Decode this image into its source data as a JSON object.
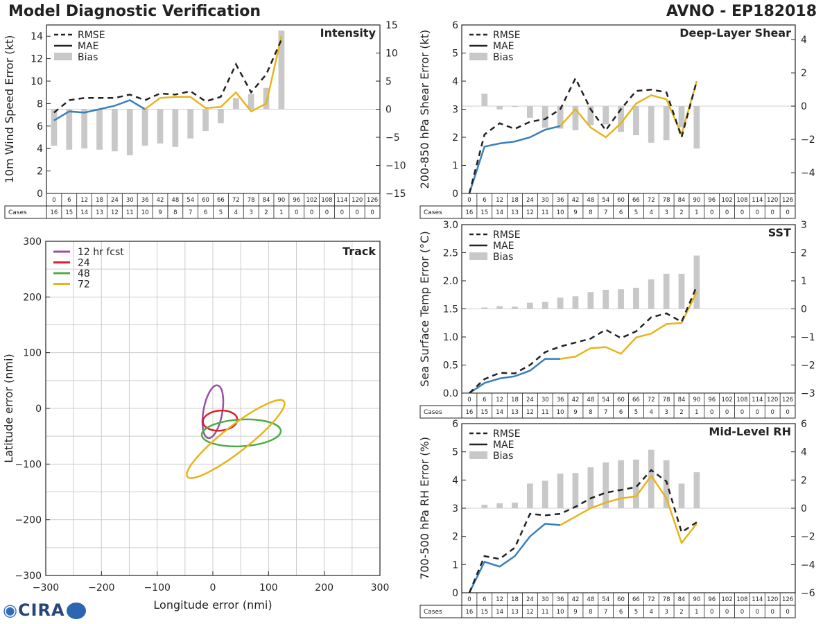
{
  "header": {
    "title_left": "Model Diagnostic Verification",
    "title_right": "AVNO - EP182018"
  },
  "logo": {
    "text": "CIRA"
  },
  "colors": {
    "gray": "#c8c8c8",
    "blue": "#3a7fbb",
    "yellow": "#e8b41a",
    "black": "#222222",
    "purple": "#9a4fa6",
    "red": "#d8202a",
    "green": "#4eac4a"
  },
  "cases_label": "Cases",
  "chart_data": [
    {
      "id": "intensity",
      "type": "line",
      "title": "Intensity",
      "ylabel": "10m Wind Speed Error (kt)",
      "ylim": [
        0,
        15
      ],
      "yticks": [
        "0",
        "2",
        "4",
        "6",
        "8",
        "10",
        "12",
        "14"
      ],
      "ytick_values": [
        0,
        2,
        4,
        6,
        8,
        10,
        12,
        14
      ],
      "y2lim": [
        -15,
        15
      ],
      "y2ticks": [
        "−15",
        "−10",
        "−5",
        "0",
        "5",
        "10",
        "15"
      ],
      "y2tick_values": [
        -15,
        -10,
        -5,
        0,
        5,
        10,
        15
      ],
      "legend": [
        "RMSE",
        "MAE",
        "Bias"
      ],
      "x": [
        "0",
        "6",
        "12",
        "18",
        "24",
        "30",
        "36",
        "42",
        "48",
        "54",
        "60",
        "66",
        "72",
        "78",
        "84",
        "90",
        "96",
        "102",
        "108",
        "114",
        "120",
        "126"
      ],
      "cases": [
        "16",
        "15",
        "14",
        "13",
        "12",
        "11",
        "10",
        "9",
        "8",
        "7",
        "6",
        "5",
        "4",
        "3",
        "2",
        "1",
        "0",
        "0",
        "0",
        "0",
        "0",
        "0"
      ],
      "rmse": [
        7.2,
        8.3,
        8.5,
        8.5,
        8.5,
        8.8,
        8.3,
        8.9,
        8.8,
        9.1,
        8.2,
        8.6,
        11.5,
        9.0,
        10.6,
        13.7
      ],
      "mae": [
        6.5,
        7.3,
        7.2,
        7.5,
        7.8,
        8.3,
        7.5,
        8.5,
        8.6,
        8.6,
        7.6,
        7.7,
        9.0,
        7.3,
        8.0,
        14.0
      ],
      "bias": [
        -6.5,
        -7.2,
        -7.0,
        -7.2,
        -7.5,
        -8.2,
        -6.5,
        -6.1,
        -6.7,
        -5.2,
        -3.9,
        -2.5,
        2.0,
        2.7,
        3.8,
        14.0
      ]
    },
    {
      "id": "shear",
      "type": "line",
      "title": "Deep-Layer Shear",
      "ylabel": "200-850 hPa Shear Error (kt)",
      "ylim": [
        0,
        6
      ],
      "yticks": [
        "0",
        "1",
        "2",
        "3",
        "4",
        "5",
        "6"
      ],
      "ytick_values": [
        0,
        1,
        2,
        3,
        4,
        5,
        6
      ],
      "y2lim": [
        -5.25,
        4.88
      ],
      "y2ticks": [
        "−4",
        "−2",
        "0",
        "2",
        "4"
      ],
      "y2tick_values": [
        -4,
        -2,
        0,
        2,
        4
      ],
      "legend": [
        "RMSE",
        "MAE",
        "Bias"
      ],
      "x": [
        "0",
        "6",
        "12",
        "18",
        "24",
        "30",
        "36",
        "42",
        "48",
        "54",
        "60",
        "66",
        "72",
        "78",
        "84",
        "90",
        "96",
        "102",
        "108",
        "114",
        "120",
        "126"
      ],
      "cases": [
        "16",
        "15",
        "14",
        "13",
        "12",
        "11",
        "10",
        "9",
        "8",
        "7",
        "6",
        "5",
        "4",
        "3",
        "2",
        "1",
        "0",
        "0",
        "0",
        "0",
        "0",
        "0"
      ],
      "rmse": [
        0.0,
        2.1,
        2.5,
        2.3,
        2.55,
        2.65,
        3.0,
        4.1,
        3.0,
        2.25,
        3.0,
        3.65,
        3.7,
        3.6,
        2.0,
        4.0
      ],
      "mae": [
        0.0,
        1.67,
        1.78,
        1.85,
        2.0,
        2.27,
        2.4,
        3.0,
        2.35,
        2.0,
        2.5,
        3.2,
        3.5,
        3.35,
        2.1,
        4.0
      ],
      "bias": [
        0.0,
        0.75,
        -0.2,
        -0.05,
        -0.7,
        -1.3,
        -1.35,
        -1.45,
        -1.15,
        -1.1,
        -1.55,
        -1.75,
        -2.2,
        -2.05,
        -1.27,
        -2.55
      ]
    },
    {
      "id": "sst",
      "type": "line",
      "title": "SST",
      "ylabel": "Sea Surface Temp Error (°C)",
      "ylim": [
        0,
        3.0
      ],
      "yticks": [
        "0.0",
        "0.5",
        "1.0",
        "1.5",
        "2.0",
        "2.5",
        "3.0"
      ],
      "ytick_values": [
        0,
        0.5,
        1.0,
        1.5,
        2.0,
        2.5,
        3.0
      ],
      "y2lim": [
        -3,
        3
      ],
      "y2ticks": [
        "−3",
        "−2",
        "−1",
        "0",
        "1",
        "2",
        "3"
      ],
      "y2tick_values": [
        -3,
        -2,
        -1,
        0,
        1,
        2,
        3
      ],
      "legend": [
        "RMSE",
        "MAE",
        "Bias"
      ],
      "x": [
        "0",
        "6",
        "12",
        "18",
        "24",
        "30",
        "36",
        "42",
        "48",
        "54",
        "60",
        "66",
        "72",
        "78",
        "84",
        "90",
        "96",
        "102",
        "108",
        "114",
        "120",
        "126"
      ],
      "cases": [
        "16",
        "15",
        "14",
        "13",
        "12",
        "11",
        "10",
        "9",
        "8",
        "7",
        "6",
        "5",
        "4",
        "3",
        "2",
        "1",
        "0",
        "0",
        "0",
        "0",
        "0",
        "0"
      ],
      "rmse": [
        0.0,
        0.25,
        0.36,
        0.35,
        0.5,
        0.73,
        0.83,
        0.9,
        0.97,
        1.13,
        0.98,
        1.1,
        1.35,
        1.42,
        1.27,
        1.9
      ],
      "mae": [
        0.0,
        0.18,
        0.26,
        0.3,
        0.4,
        0.61,
        0.61,
        0.65,
        0.8,
        0.82,
        0.7,
        0.99,
        1.06,
        1.23,
        1.25,
        1.8
      ],
      "bias": [
        0.0,
        0.05,
        0.1,
        0.08,
        0.22,
        0.25,
        0.4,
        0.45,
        0.6,
        0.68,
        0.7,
        0.75,
        1.05,
        1.25,
        1.25,
        1.9
      ]
    },
    {
      "id": "rh",
      "type": "line",
      "title": "Mid-Level RH",
      "ylabel": "700-500 hPa RH Error (%)",
      "ylim": [
        0,
        6
      ],
      "yticks": [
        "0",
        "1",
        "2",
        "3",
        "4",
        "5",
        "6"
      ],
      "ytick_values": [
        0,
        1,
        2,
        3,
        4,
        5,
        6
      ],
      "y2lim": [
        -6,
        6
      ],
      "y2ticks": [
        "−6",
        "−4",
        "−2",
        "0",
        "2",
        "4",
        "6"
      ],
      "y2tick_values": [
        -6,
        -4,
        -2,
        0,
        2,
        4,
        6
      ],
      "legend": [
        "RMSE",
        "MAE",
        "Bias"
      ],
      "x": [
        "0",
        "6",
        "12",
        "18",
        "24",
        "30",
        "36",
        "42",
        "48",
        "54",
        "60",
        "66",
        "72",
        "78",
        "84",
        "90",
        "96",
        "102",
        "108",
        "114",
        "120",
        "126"
      ],
      "cases": [
        "16",
        "15",
        "14",
        "13",
        "12",
        "11",
        "10",
        "9",
        "8",
        "7",
        "6",
        "5",
        "4",
        "3",
        "2",
        "1",
        "0",
        "0",
        "0",
        "0",
        "0",
        "0"
      ],
      "rmse": [
        0.0,
        1.3,
        1.2,
        1.6,
        2.8,
        2.75,
        2.8,
        3.05,
        3.35,
        3.55,
        3.65,
        3.75,
        4.35,
        3.95,
        2.15,
        2.5
      ],
      "mae": [
        0.0,
        1.1,
        0.93,
        1.3,
        2.0,
        2.45,
        2.4,
        2.7,
        3.0,
        3.2,
        3.35,
        3.42,
        4.15,
        3.35,
        1.77,
        2.45
      ],
      "bias": [
        0.0,
        0.25,
        0.35,
        0.4,
        1.75,
        1.95,
        2.45,
        2.5,
        2.9,
        3.25,
        3.4,
        3.45,
        4.15,
        3.4,
        1.75,
        2.55
      ]
    },
    {
      "id": "track",
      "type": "scatter",
      "title": "Track",
      "xlabel": "Longitude error (nmi)",
      "ylabel": "Latitude error (nmi)",
      "xlim": [
        -300,
        300
      ],
      "ylim": [
        -300,
        300
      ],
      "xticks": [
        "−300",
        "−200",
        "−100",
        "0",
        "100",
        "200",
        "300"
      ],
      "xtick_values": [
        -300,
        -200,
        -100,
        0,
        100,
        200,
        300
      ],
      "yticks": [
        "−300",
        "−200",
        "−100",
        "0",
        "100",
        "200",
        "300"
      ],
      "ytick_values": [
        -300,
        -200,
        -100,
        0,
        100,
        200,
        300
      ],
      "grid_step": 50,
      "legend": [
        "12 hr fcst",
        "24",
        "48",
        "72"
      ],
      "ellipses": [
        {
          "label": "12 hr fcst",
          "cx": 0,
          "cy": -6,
          "rx": 17,
          "ry": 48,
          "angle": 10,
          "color": "#9a4fa6"
        },
        {
          "label": "24",
          "cx": 13,
          "cy": -22,
          "rx": 31,
          "ry": 18,
          "angle": -5,
          "color": "#d8202a"
        },
        {
          "label": "48",
          "cx": 51,
          "cy": -44,
          "rx": 71,
          "ry": 24,
          "angle": -3,
          "color": "#4eac4a"
        },
        {
          "label": "72",
          "cx": 41,
          "cy": -55,
          "rx": 110,
          "ry": 23,
          "angle": -38,
          "color": "#e8b41a"
        }
      ]
    }
  ]
}
